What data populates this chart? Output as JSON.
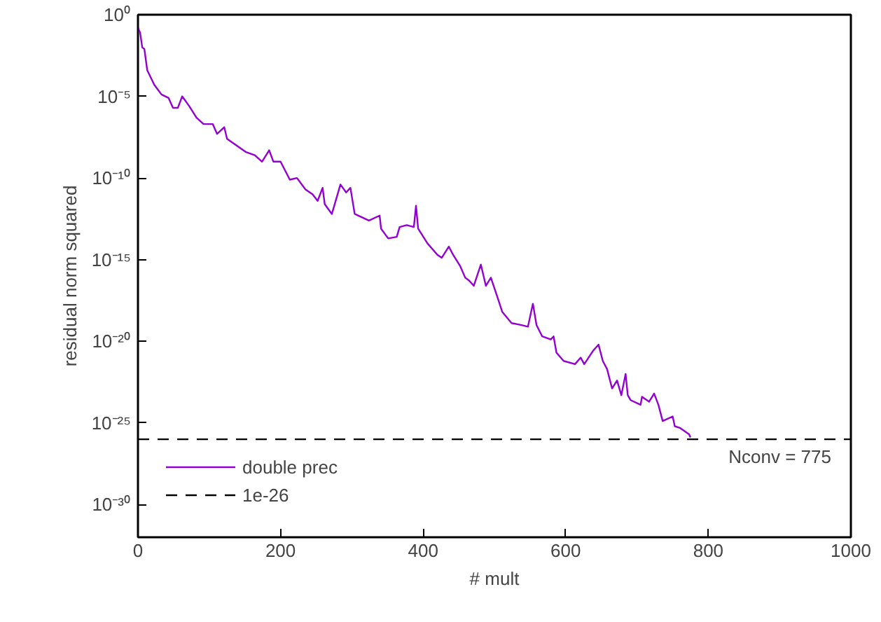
{
  "chart_data": {
    "type": "line",
    "xlabel": "# mult",
    "ylabel": "residual norm squared",
    "log": "y",
    "grid": false,
    "legend": "bottom left",
    "marker": "none",
    "line_style": "solid",
    "xlim": [
      0,
      1000
    ],
    "xticks": [
      0,
      200,
      400,
      600,
      800,
      1000
    ],
    "ylim": [
      1e-32,
      1
    ],
    "yticks": [
      {
        "value": 1,
        "label": "10⁰"
      },
      {
        "value": 1e-05,
        "label": "10⁻⁵"
      },
      {
        "value": 1e-10,
        "label": "10⁻¹⁰"
      },
      {
        "value": 1e-15,
        "label": "10⁻¹⁵"
      },
      {
        "value": 1e-20,
        "label": "10⁻²⁰"
      },
      {
        "value": 1e-25,
        "label": "10⁻²⁵"
      },
      {
        "value": 1e-30,
        "label": "10⁻³⁰"
      }
    ],
    "series": [
      {
        "name": "double prec",
        "color": "#9400d3",
        "x": [
          0,
          3,
          6,
          9,
          13,
          23,
          33,
          43,
          49,
          56,
          62,
          72,
          82,
          92,
          105,
          111,
          121,
          125,
          138,
          151,
          164,
          174,
          184,
          190,
          200,
          213,
          223,
          235,
          245,
          252,
          259,
          262,
          272,
          284,
          292,
          298,
          304,
          324,
          339,
          341,
          351,
          363,
          367,
          377,
          387,
          390,
          393,
          406,
          420,
          426,
          436,
          442,
          452,
          459,
          465,
          471,
          481,
          488,
          495,
          505,
          511,
          524,
          537,
          547,
          554,
          559,
          567,
          579,
          583,
          587,
          597,
          613,
          621,
          626,
          632,
          638,
          646,
          652,
          658,
          665,
          672,
          678,
          684,
          687,
          691,
          705,
          707,
          717,
          724,
          730,
          736,
          750,
          753,
          760,
          773,
          775
        ],
        "values": [
          0.16,
          0.079,
          0.01,
          0.0079,
          0.0004,
          5e-05,
          1.3e-05,
          7.9e-06,
          2e-06,
          2e-06,
          1e-05,
          2.5e-06,
          5e-07,
          2e-07,
          2e-07,
          5e-08,
          1.3e-07,
          2.5e-08,
          1e-08,
          4e-09,
          2.5e-09,
          1e-09,
          5e-09,
          1e-09,
          1e-09,
          7.9e-11,
          1e-10,
          2e-11,
          1e-11,
          4e-12,
          2.5e-11,
          2.5e-12,
          6.3e-13,
          4e-11,
          1.3e-11,
          2.5e-11,
          6.3e-13,
          2.5e-13,
          5e-13,
          7.9e-14,
          2e-14,
          2.5e-14,
          1e-13,
          1.3e-13,
          1e-13,
          2e-12,
          7.9e-14,
          1e-14,
          2e-15,
          1.3e-15,
          6.3e-15,
          2e-15,
          4e-16,
          7.9e-17,
          5e-17,
          2.5e-17,
          5e-16,
          2.5e-17,
          7.9e-17,
          4e-18,
          6.3e-19,
          1.3e-19,
          1e-19,
          7.9e-20,
          2e-18,
          1e-19,
          2e-20,
          1.3e-20,
          2e-20,
          2e-21,
          6.3e-22,
          4e-22,
          1e-21,
          4e-22,
          1e-21,
          2.5e-21,
          6.3e-21,
          6.3e-22,
          2e-22,
          1.3e-23,
          4e-23,
          5e-24,
          1e-22,
          5e-24,
          2.5e-24,
          1.3e-24,
          4e-24,
          2e-24,
          6.3e-24,
          1.3e-24,
          1.3e-25,
          2.5e-25,
          6.3e-26,
          5e-26,
          2e-26,
          1.3e-26
        ]
      }
    ],
    "ref_lines": [
      {
        "axis": "y",
        "value": 1e-26,
        "label": "1e-26",
        "color": "#000000",
        "line_style": "dashed"
      }
    ],
    "annotations": [
      "Nconv = 775"
    ]
  }
}
